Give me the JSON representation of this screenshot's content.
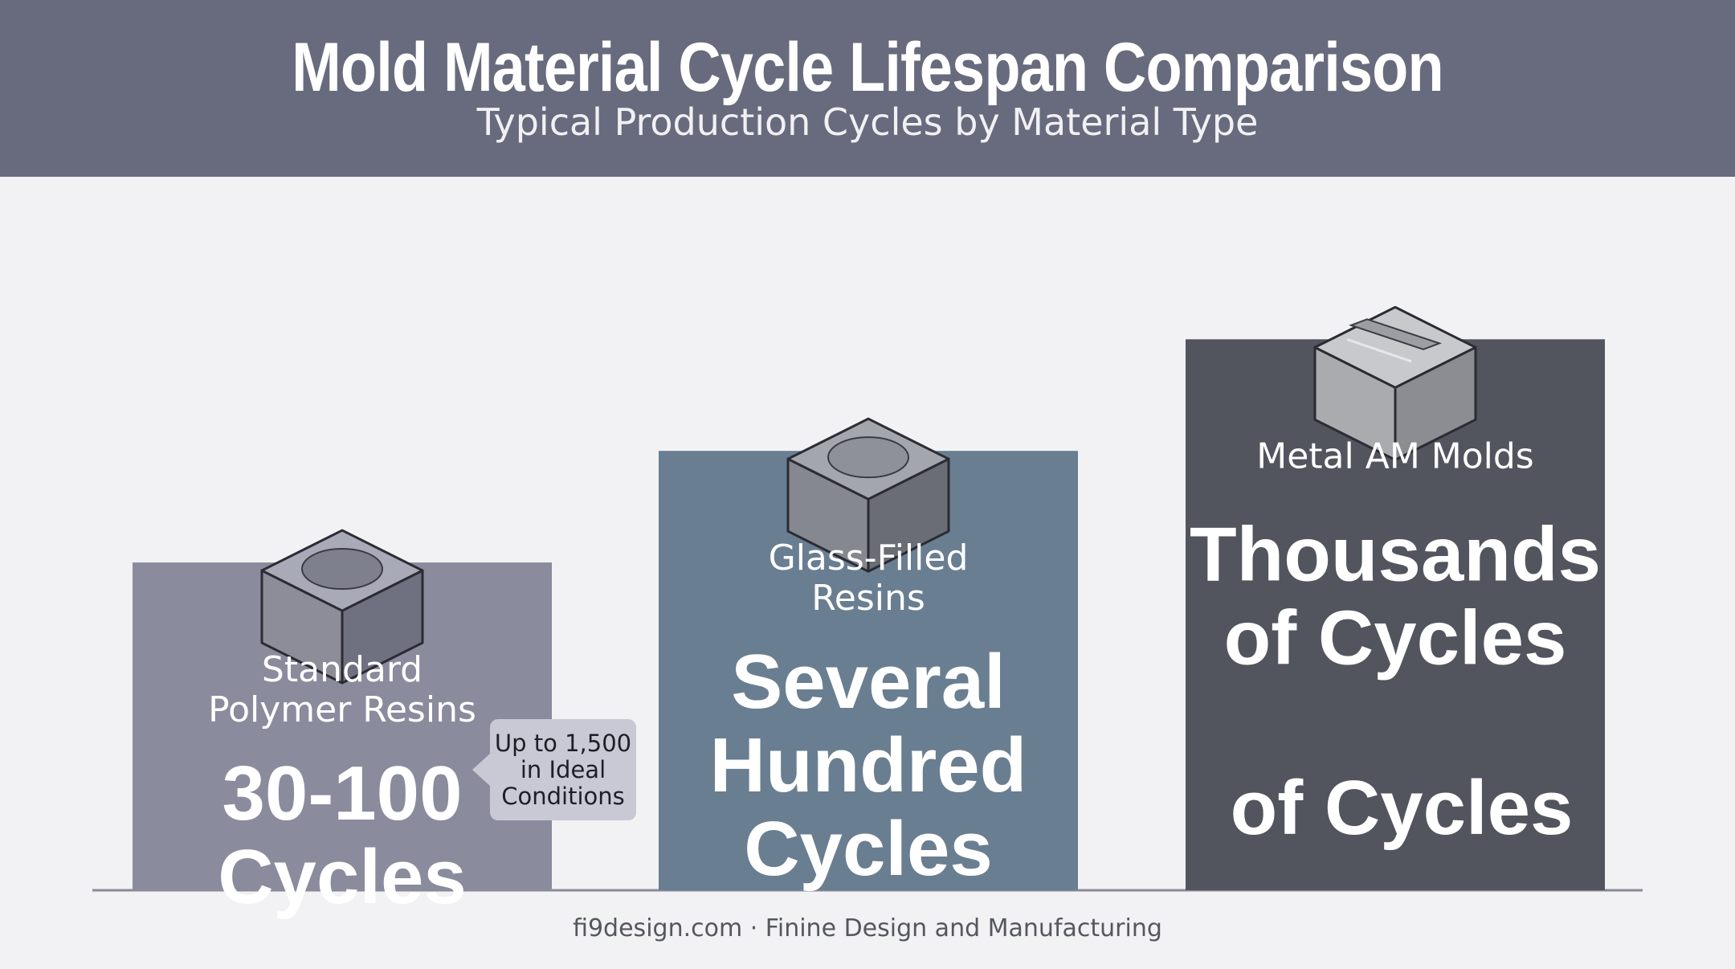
{
  "header": {
    "title": "Mold Material Cycle Lifespan Comparison",
    "subtitle": "Typical Production Cycles by Material Type"
  },
  "footer": {
    "text": "fi9design.com · Finine Design and Manufacturing"
  },
  "colors": {
    "header_bg": "#686b7d",
    "background": "#f2f2f4",
    "standard_bar": "#8a8b9d",
    "glass_bar": "#6a7e91",
    "metal_bar": "#52545e",
    "axis": "#8a8b98"
  },
  "icons": [
    "polymer-mold-block-icon",
    "glass-filled-mold-block-icon",
    "metal-mold-block-icon"
  ],
  "chart_data": {
    "type": "bar",
    "title": "Mold Material Cycle Lifespan Comparison",
    "subtitle": "Typical Production Cycles by Material Type",
    "xlabel": "",
    "ylabel": "",
    "grid": false,
    "legend": "none",
    "categories": [
      "Standard Polymer Resins",
      "Glass-Filled Resins",
      "Metal AM Molds"
    ],
    "category_lines": [
      [
        "Standard",
        "Polymer Resins"
      ],
      [
        "Glass-Filled",
        "Resins"
      ],
      [
        "Metal AM Molds"
      ]
    ],
    "value_text_lines": [
      [
        "30-100",
        "Cycles"
      ],
      [
        "Several",
        "Hundred",
        "Cycles"
      ],
      [
        "Thousands",
        "of Cycles"
      ]
    ],
    "extra_value_text": [
      "",
      "",
      "of Cycles"
    ],
    "relative_heights": [
      0.47,
      0.63,
      0.79
    ],
    "callout": {
      "category": "Standard Polymer Resins",
      "lines": [
        "Up to 1,500",
        "in Ideal",
        "Conditions"
      ]
    },
    "bar_colors": [
      "#8a8b9d",
      "#6a7e91",
      "#52545e"
    ]
  }
}
